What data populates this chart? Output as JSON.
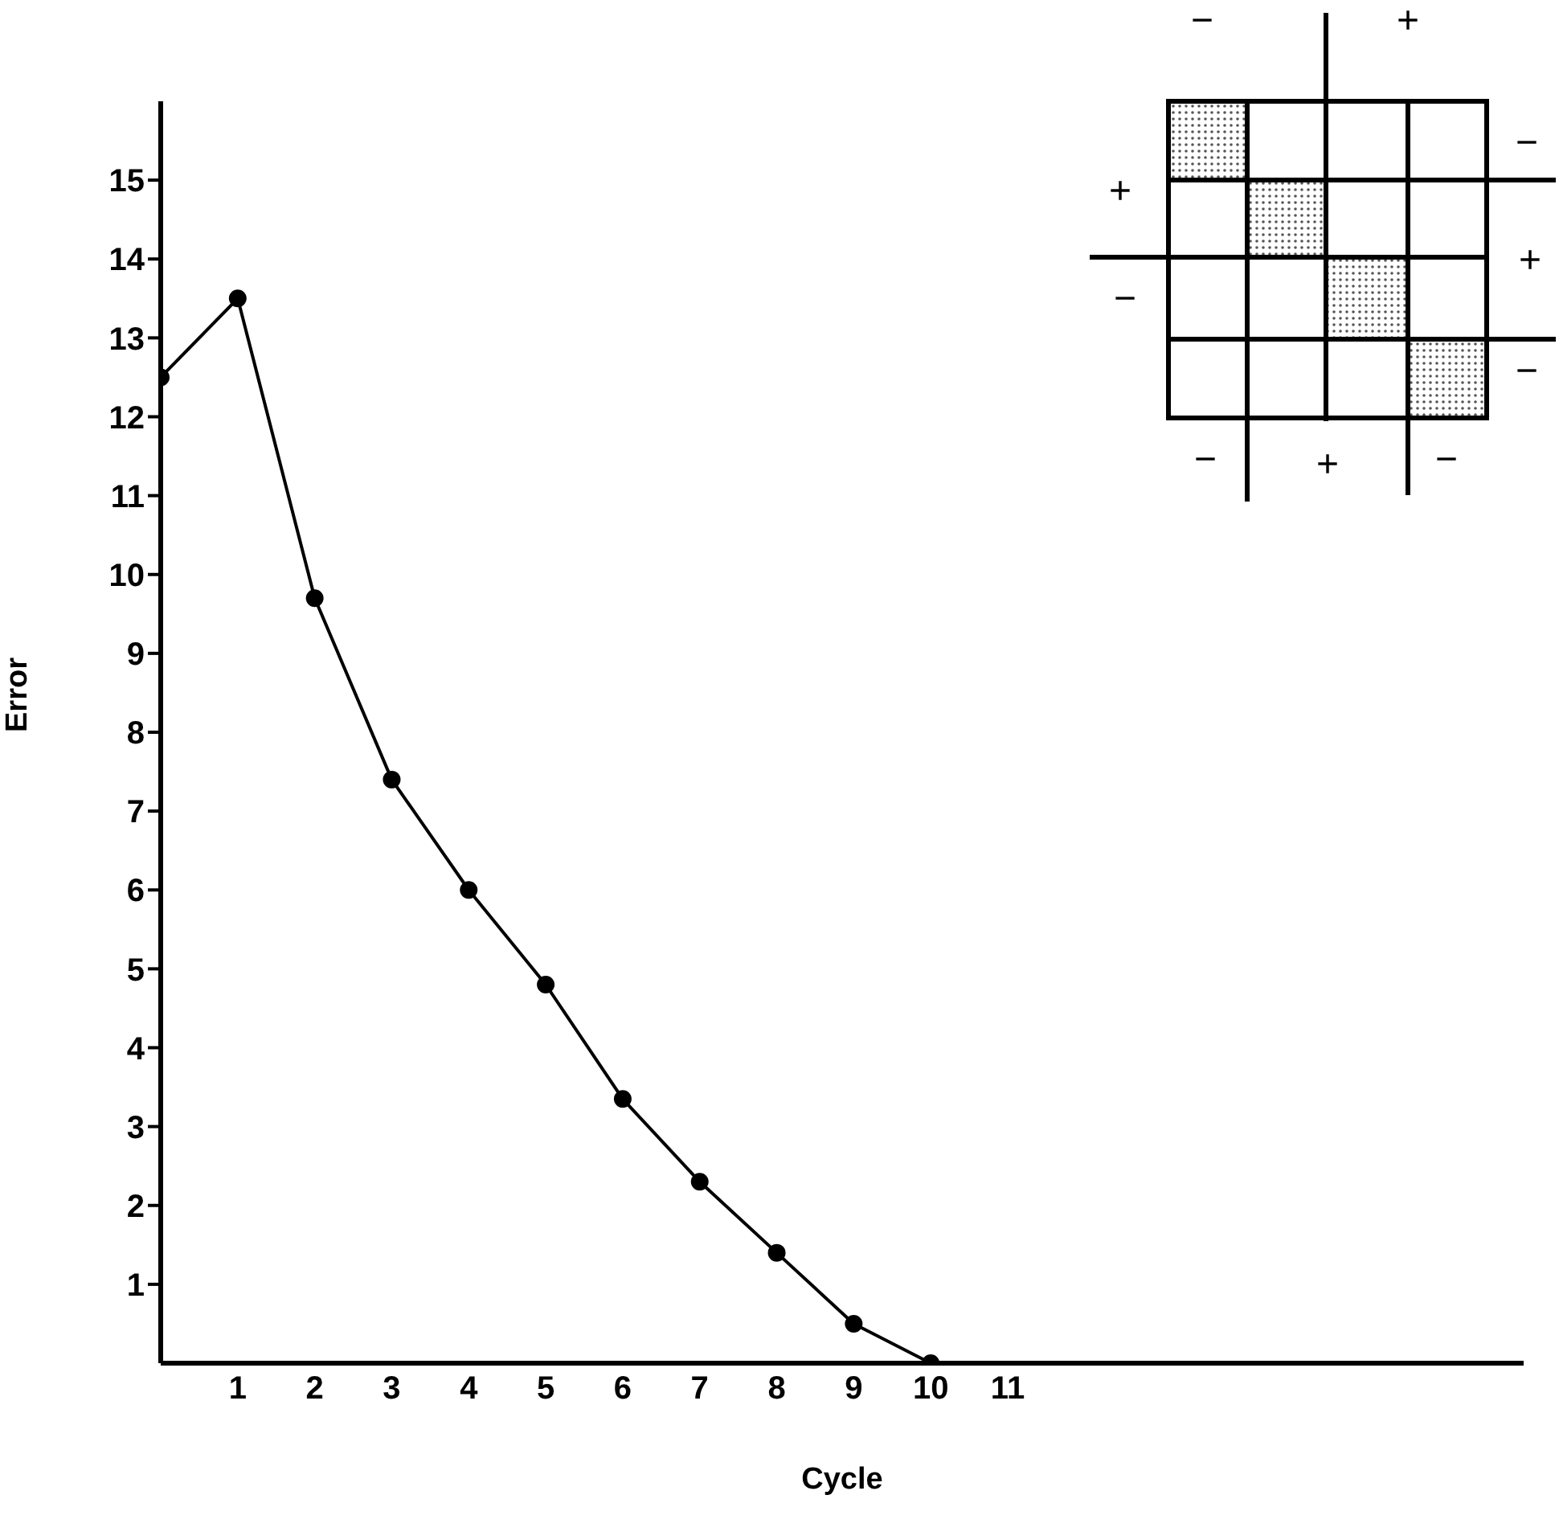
{
  "chart_data": {
    "type": "line",
    "xlabel": "Cycle",
    "ylabel": "Error",
    "x": [
      0,
      1,
      2,
      3,
      4,
      5,
      6,
      7,
      8,
      9,
      10
    ],
    "series": [
      {
        "color": "#000000",
        "values": [
          12.5,
          13.5,
          9.7,
          7.4,
          6.0,
          4.8,
          3.35,
          2.3,
          1.4,
          0.5,
          0
        ]
      }
    ],
    "xlim": [
      0,
      17.7
    ],
    "xticks": [
      1,
      2,
      3,
      4,
      5,
      6,
      7,
      8,
      9,
      10,
      11
    ],
    "ylim": [
      0,
      16
    ],
    "yticks": [
      1,
      2,
      3,
      4,
      5,
      6,
      7,
      8,
      9,
      10,
      11,
      12,
      13,
      14,
      15
    ],
    "grid": false,
    "legend": false,
    "marker": "circle",
    "line_style": "solid",
    "annotations": [
      "−",
      "+",
      "−",
      "+",
      "−",
      "+",
      "−",
      "−",
      "+",
      "−"
    ]
  }
}
